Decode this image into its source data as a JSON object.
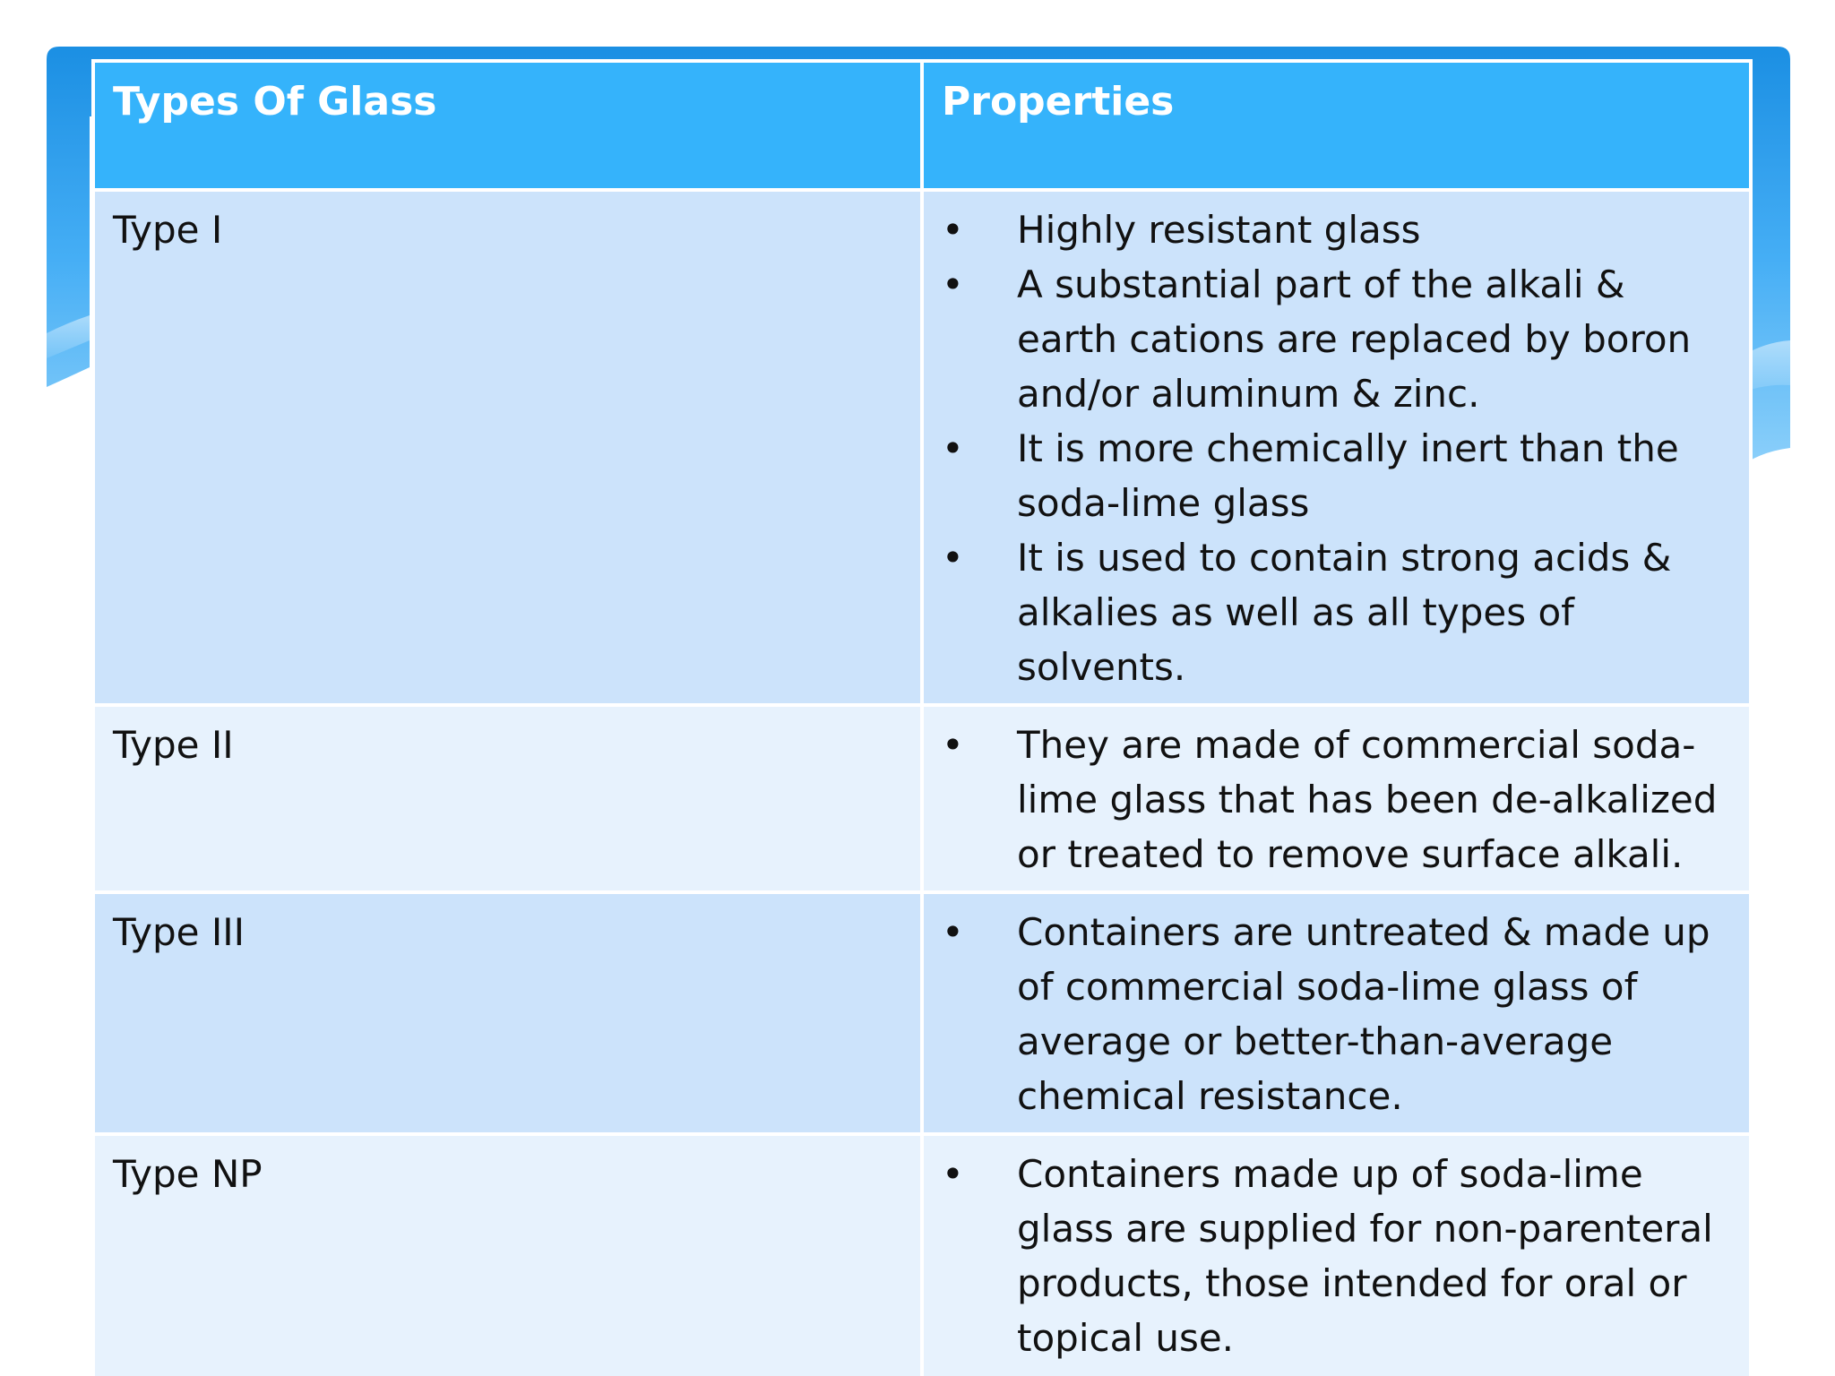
{
  "table": {
    "headers": [
      "Types Of Glass",
      "Properties"
    ],
    "rows": [
      {
        "type": "Type I",
        "bullet": "•",
        "properties": [
          "Highly resistant glass",
          "A substantial part of the alkali & earth cations are replaced by boron and/or aluminum & zinc.",
          "It is more chemically inert than the soda-lime glass",
          "It is used to contain strong acids & alkalies as well as all types of solvents."
        ]
      },
      {
        "type": "Type II",
        "bullet": "•",
        "properties": [
          "They are made of commercial soda-lime glass that has been de-alkalized or treated to remove surface alkali."
        ]
      },
      {
        "type": "Type III",
        "bullet": "•",
        "properties": [
          "Containers are untreated & made up of commercial soda-lime glass of average or better-than-average chemical resistance."
        ]
      },
      {
        "type": "Type NP",
        "bullet": "•",
        "properties": [
          "Containers made up of soda-lime glass are supplied for non-parenteral products, those intended for oral or topical use."
        ]
      }
    ]
  },
  "colors": {
    "header": "#35b3fb",
    "row_dark": "#cce3fb",
    "row_light": "#e7f2fd",
    "banner": "#1e93e6"
  }
}
